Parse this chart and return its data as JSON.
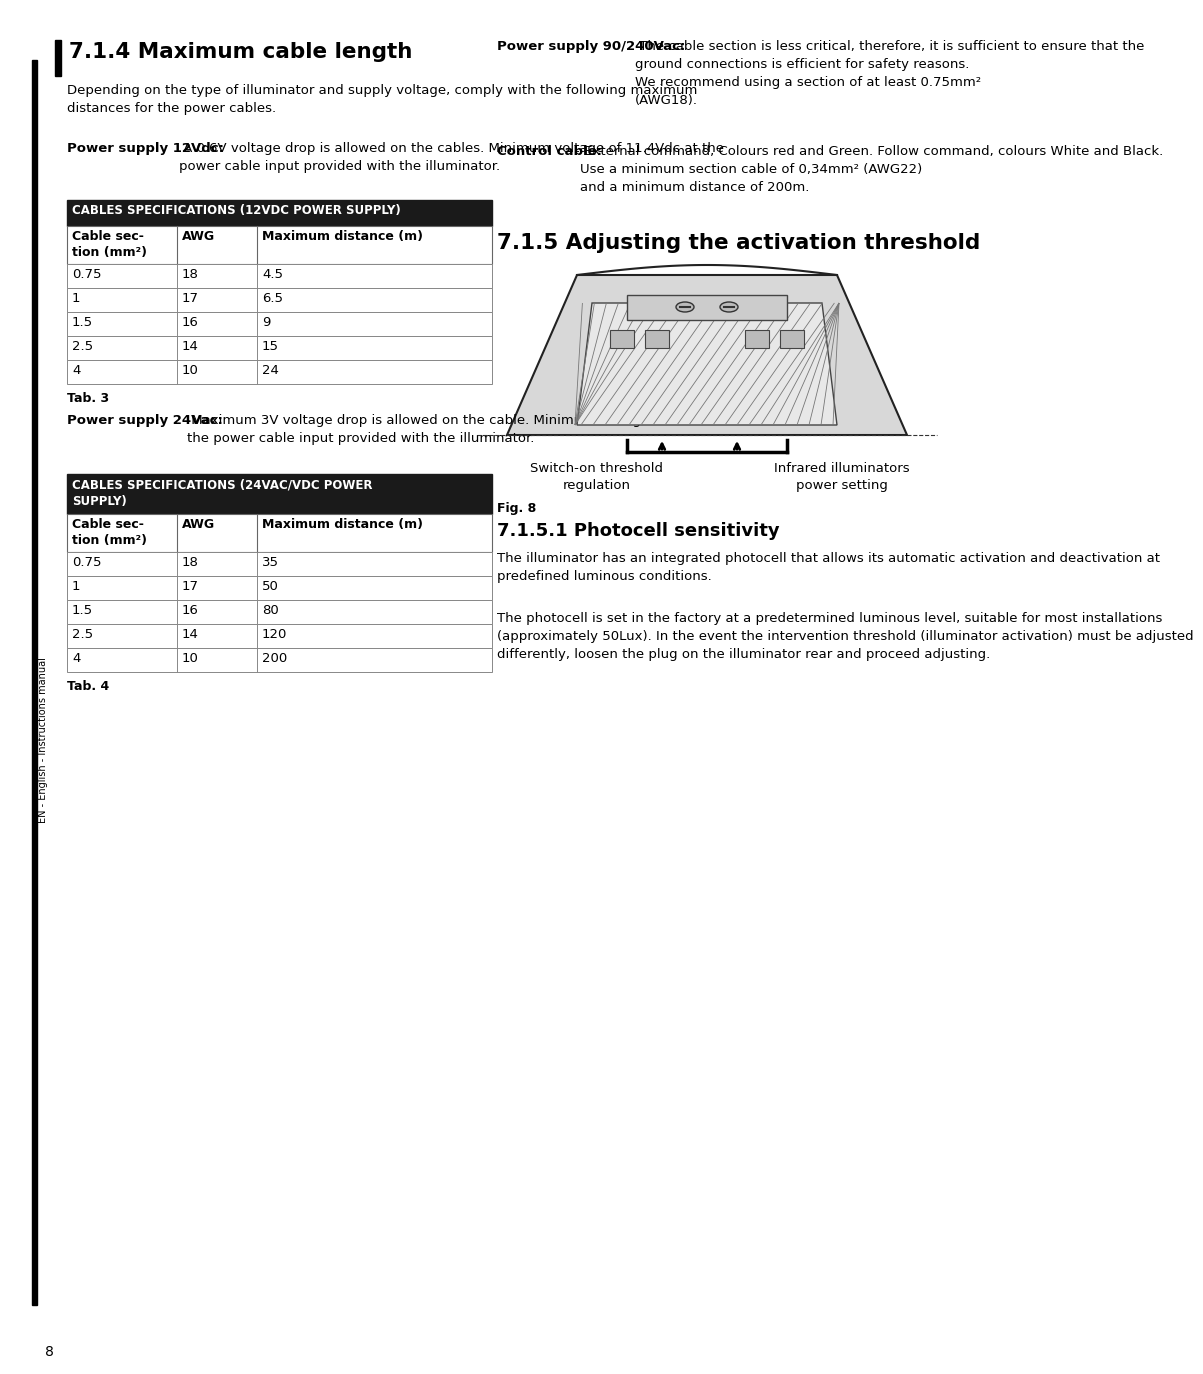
{
  "page_number": "8",
  "bg_color": "#ffffff",
  "section_714_title": "7.1.4 Maximum cable length",
  "section_714_intro": "Depending on the type of illuminator and supply voltage, comply with the following maximum\ndistances for the power cables.",
  "ps12_bold": "Power supply 12Vdc:",
  "ps12_text": " A 0.6V voltage drop is allowed on the cables. Minimum voltage of 11.4Vdc at the\npower cable input provided with the illuminator.",
  "table1_title": "CABLES SPECIFICATIONS (12VDC POWER SUPPLY)",
  "table1_headers": [
    "Cable sec-\ntion (mm²)",
    "AWG",
    "Maximum distance (m)"
  ],
  "table1_rows": [
    [
      "0.75",
      "18",
      "4.5"
    ],
    [
      "1",
      "17",
      "6.5"
    ],
    [
      "1.5",
      "16",
      "9"
    ],
    [
      "2.5",
      "14",
      "15"
    ],
    [
      "4",
      "10",
      "24"
    ]
  ],
  "tab3_label": "Tab. 3",
  "ps24_bold": "Power supply 24Vac:",
  "ps24_text": " Maximum 3V voltage drop is allowed on the cable. Minimum voltage of 21Vac at\nthe power cable input provided with the illuminator.",
  "table2_title": "CABLES SPECIFICATIONS (24VAC/VDC POWER\nSUPPLY)",
  "table2_headers": [
    "Cable sec-\ntion (mm²)",
    "AWG",
    "Maximum distance (m)"
  ],
  "table2_rows": [
    [
      "0.75",
      "18",
      "35"
    ],
    [
      "1",
      "17",
      "50"
    ],
    [
      "1.5",
      "16",
      "80"
    ],
    [
      "2.5",
      "14",
      "120"
    ],
    [
      "4",
      "10",
      "200"
    ]
  ],
  "tab4_label": "Tab. 4",
  "ps240_bold": "Power supply 90/240Vac:",
  "ps240_text": " The cable section is less critical, therefore, it is sufficient to ensure that the\nground connections is efficient for safety reasons.\nWe recommend using a section of at least 0.75mm²\n(AWG18).",
  "ctrl_bold": "Control cable:",
  "ctrl_text": " External command, Colours red and Green. Follow command, colours White and Black.\nUse a minimum section cable of 0,34mm² (AWG22)\nand a minimum distance of 200m.",
  "section_715_title": "7.1.5 Adjusting the activation threshold",
  "fig8_label": "Fig. 8",
  "fig8_caption_left": "Switch-on threshold\nregulation",
  "fig8_caption_right": "Infrared illuminators\npower setting",
  "section_7151_title": "7.1.5.1 Photocell sensitivity",
  "photocell_text1": "The illuminator has an integrated photocell that allows its automatic activation and deactivation at\npredefined luminous conditions.",
  "photocell_text2": "The photocell is set in the factory at a predetermined luminous level, suitable for most installations\n(approximately 50Lux). In the event the intervention threshold (illuminator activation) must be adjusted\ndifferently, loosen the plug on the illuminator rear and proceed adjusting.",
  "sidebar_text": "EN - English - Instructions manual"
}
